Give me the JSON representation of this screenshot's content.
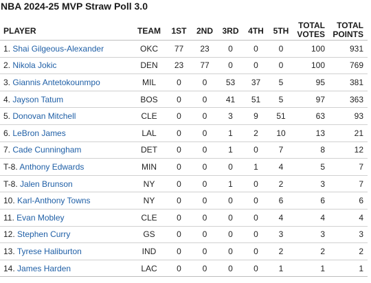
{
  "title": "NBA 2024-25 MVP Straw Poll 3.0",
  "colors": {
    "link": "#1f5fa6",
    "text": "#222222",
    "divider": "#d0d0d0"
  },
  "columns": {
    "player": "PLAYER",
    "team": "TEAM",
    "first": "1ST",
    "second": "2ND",
    "third": "3RD",
    "fourth": "4TH",
    "fifth": "5TH",
    "total_votes_line1": "TOTAL",
    "total_votes_line2": "VOTES",
    "total_points_line1": "TOTAL",
    "total_points_line2": "POINTS"
  },
  "rows": [
    {
      "rank": "1.",
      "name": "Shai Gilgeous-Alexander",
      "team": "OKC",
      "first": "77",
      "second": "23",
      "third": "0",
      "fourth": "0",
      "fifth": "0",
      "votes": "100",
      "points": "931"
    },
    {
      "rank": "2.",
      "name": "Nikola Jokic",
      "team": "DEN",
      "first": "23",
      "second": "77",
      "third": "0",
      "fourth": "0",
      "fifth": "0",
      "votes": "100",
      "points": "769"
    },
    {
      "rank": "3.",
      "name": "Giannis Antetokounmpo",
      "team": "MIL",
      "first": "0",
      "second": "0",
      "third": "53",
      "fourth": "37",
      "fifth": "5",
      "votes": "95",
      "points": "381"
    },
    {
      "rank": "4.",
      "name": "Jayson Tatum",
      "team": "BOS",
      "first": "0",
      "second": "0",
      "third": "41",
      "fourth": "51",
      "fifth": "5",
      "votes": "97",
      "points": "363"
    },
    {
      "rank": "5.",
      "name": "Donovan Mitchell",
      "team": "CLE",
      "first": "0",
      "second": "0",
      "third": "3",
      "fourth": "9",
      "fifth": "51",
      "votes": "63",
      "points": "93"
    },
    {
      "rank": "6.",
      "name": "LeBron James",
      "team": "LAL",
      "first": "0",
      "second": "0",
      "third": "1",
      "fourth": "2",
      "fifth": "10",
      "votes": "13",
      "points": "21"
    },
    {
      "rank": "7.",
      "name": "Cade Cunningham",
      "team": "DET",
      "first": "0",
      "second": "0",
      "third": "1",
      "fourth": "0",
      "fifth": "7",
      "votes": "8",
      "points": "12"
    },
    {
      "rank": "T-8.",
      "name": "Anthony Edwards",
      "team": "MIN",
      "first": "0",
      "second": "0",
      "third": "0",
      "fourth": "1",
      "fifth": "4",
      "votes": "5",
      "points": "7"
    },
    {
      "rank": "T-8.",
      "name": "Jalen Brunson",
      "team": "NY",
      "first": "0",
      "second": "0",
      "third": "1",
      "fourth": "0",
      "fifth": "2",
      "votes": "3",
      "points": "7"
    },
    {
      "rank": "10.",
      "name": "Karl-Anthony Towns",
      "team": "NY",
      "first": "0",
      "second": "0",
      "third": "0",
      "fourth": "0",
      "fifth": "6",
      "votes": "6",
      "points": "6"
    },
    {
      "rank": "11.",
      "name": "Evan Mobley",
      "team": "CLE",
      "first": "0",
      "second": "0",
      "third": "0",
      "fourth": "0",
      "fifth": "4",
      "votes": "4",
      "points": "4"
    },
    {
      "rank": "12.",
      "name": "Stephen Curry",
      "team": "GS",
      "first": "0",
      "second": "0",
      "third": "0",
      "fourth": "0",
      "fifth": "3",
      "votes": "3",
      "points": "3"
    },
    {
      "rank": "13.",
      "name": "Tyrese Haliburton",
      "team": "IND",
      "first": "0",
      "second": "0",
      "third": "0",
      "fourth": "0",
      "fifth": "2",
      "votes": "2",
      "points": "2"
    },
    {
      "rank": "14.",
      "name": "James Harden",
      "team": "LAC",
      "first": "0",
      "second": "0",
      "third": "0",
      "fourth": "0",
      "fifth": "1",
      "votes": "1",
      "points": "1"
    }
  ]
}
